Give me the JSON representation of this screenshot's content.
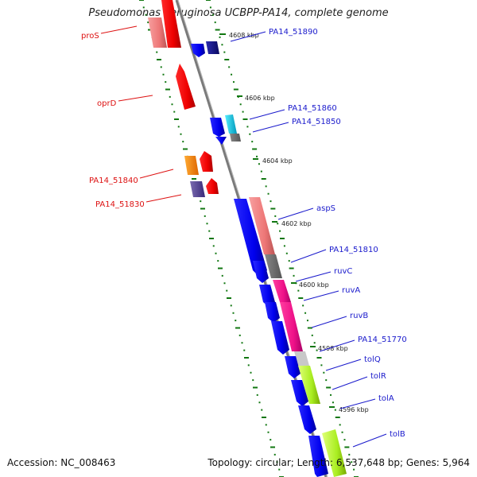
{
  "title": "Pseudomonas aeruginosa UCBPP-PA14, complete genome",
  "footer": {
    "accession": "Accession: NC_008463",
    "stats": "Topology: circular; Length: 6,537,648 bp; Genes: 5,964"
  },
  "scale_labels": [
    "4608 kbp",
    "4606 kbp",
    "4604 kbp",
    "4602 kbp",
    "4600 kbp",
    "4598 kbp",
    "4596 kbp"
  ],
  "left_labels": [
    "proS",
    "oprD",
    "PA14_51840",
    "PA14_51830"
  ],
  "right_labels": [
    "PA14_51890",
    "PA14_51860",
    "PA14_51850",
    "aspS",
    "PA14_51810",
    "ruvC",
    "ruvA",
    "ruvB",
    "PA14_51770",
    "tolQ",
    "tolR",
    "tolA",
    "tolB"
  ],
  "colors": {
    "reverse_strand_label": "#dd1111",
    "forward_strand_label": "#1a1acc",
    "backbone": "#888888",
    "tick": "#117711"
  }
}
